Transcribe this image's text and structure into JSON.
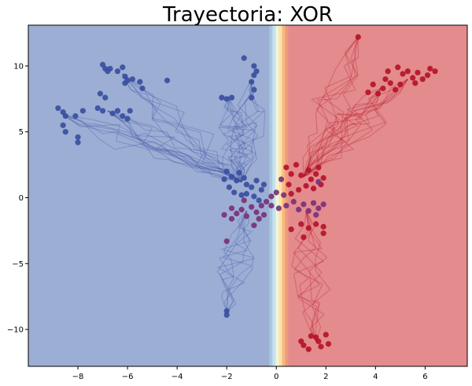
{
  "chart_data": {
    "type": "scatter",
    "title": "Trayectoria: XOR",
    "xlabel": "",
    "ylabel": "",
    "xlim": [
      -10,
      7.7
    ],
    "ylim": [
      -12.8,
      13.1
    ],
    "xticks": [
      -8,
      -6,
      -4,
      -2,
      0,
      2,
      4,
      6
    ],
    "yticks": [
      -10,
      -5,
      0,
      5,
      10
    ],
    "xtick_labels": [
      "−8",
      "−6",
      "−4",
      "−2",
      "0",
      "2",
      "4",
      "6"
    ],
    "ytick_labels": [
      "−10",
      "−5",
      "0",
      "5",
      "10"
    ],
    "grid": false,
    "legend": "none",
    "background": {
      "type": "decision-region",
      "boundary_x": 0.1,
      "left_color": "#9daed4",
      "right_color": "#e38b8d",
      "transition_colors": [
        "#9daed4",
        "#a9c9e1",
        "#c7e2ec",
        "#eef4d8",
        "#fbe3a8",
        "#f7b980",
        "#ee9a7e",
        "#e38b8d"
      ]
    },
    "colors": {
      "class_0": "#3a4fa0",
      "class_1": "#b5122b",
      "mid": "#7a3178"
    },
    "series": [
      {
        "class": 0,
        "color": "#3a4fa0",
        "points": [
          [
            -8.8,
            6.8
          ],
          [
            -8.6,
            6.5
          ],
          [
            -8.5,
            6.2
          ],
          [
            -8.6,
            5.5
          ],
          [
            -8.5,
            5.0
          ],
          [
            -8.1,
            6.2
          ],
          [
            -7.8,
            6.6
          ],
          [
            -8.0,
            4.6
          ],
          [
            -8.0,
            4.2
          ],
          [
            -7.2,
            6.8
          ],
          [
            -7.0,
            6.6
          ],
          [
            -6.9,
            7.6
          ],
          [
            -7.1,
            7.9
          ],
          [
            -6.6,
            6.4
          ],
          [
            -6.4,
            6.6
          ],
          [
            -6.2,
            6.2
          ],
          [
            -6.0,
            6.0
          ],
          [
            -5.9,
            6.6
          ],
          [
            -7.0,
            10.1
          ],
          [
            -6.9,
            9.8
          ],
          [
            -6.7,
            9.8
          ],
          [
            -6.4,
            9.6
          ],
          [
            -6.2,
            9.9
          ],
          [
            -6.1,
            9.2
          ],
          [
            -6.0,
            8.9
          ],
          [
            -5.8,
            9.0
          ],
          [
            -5.5,
            8.8
          ],
          [
            -5.4,
            8.3
          ],
          [
            -4.4,
            8.9
          ],
          [
            -6.8,
            9.6
          ],
          [
            -6.1,
            8.7
          ],
          [
            -2.2,
            7.6
          ],
          [
            -2.0,
            7.5
          ],
          [
            -1.8,
            7.6
          ],
          [
            -1.3,
            10.6
          ],
          [
            -0.9,
            10.0
          ],
          [
            -0.8,
            9.6
          ],
          [
            -0.9,
            9.3
          ],
          [
            -1.0,
            8.8
          ],
          [
            -0.9,
            8.2
          ],
          [
            -1.0,
            7.6
          ],
          [
            -2.0,
            2.0
          ],
          [
            -1.8,
            1.6
          ],
          [
            -1.6,
            1.3
          ],
          [
            -1.5,
            1.9
          ],
          [
            -1.3,
            1.5
          ],
          [
            -1.2,
            1.0
          ],
          [
            -1.0,
            0.8
          ],
          [
            -0.8,
            1.3
          ],
          [
            -0.6,
            0.6
          ],
          [
            -1.9,
            0.8
          ],
          [
            -1.7,
            0.4
          ],
          [
            -1.4,
            0.2
          ],
          [
            -1.2,
            0.3
          ],
          [
            -0.9,
            0.1
          ],
          [
            -0.7,
            -0.2
          ],
          [
            -2.1,
            1.4
          ],
          [
            -0.5,
            1.0
          ],
          [
            -2.0,
            -8.6
          ],
          [
            -2.0,
            -8.9
          ]
        ]
      },
      {
        "class": 1,
        "color": "#b5122b",
        "points": [
          [
            3.3,
            12.2
          ],
          [
            3.7,
            8.0
          ],
          [
            3.9,
            8.6
          ],
          [
            4.1,
            7.9
          ],
          [
            4.3,
            8.3
          ],
          [
            4.4,
            9.0
          ],
          [
            4.6,
            8.7
          ],
          [
            4.8,
            8.2
          ],
          [
            5.0,
            8.6
          ],
          [
            5.1,
            9.4
          ],
          [
            5.3,
            9.6
          ],
          [
            5.5,
            9.1
          ],
          [
            5.7,
            9.5
          ],
          [
            5.9,
            9.0
          ],
          [
            6.1,
            9.3
          ],
          [
            6.2,
            9.8
          ],
          [
            6.4,
            9.6
          ],
          [
            4.5,
            9.6
          ],
          [
            4.9,
            9.9
          ],
          [
            5.6,
            8.7
          ],
          [
            0.4,
            2.3
          ],
          [
            0.6,
            1.8
          ],
          [
            0.8,
            2.5
          ],
          [
            1.0,
            1.7
          ],
          [
            1.3,
            2.1
          ],
          [
            1.6,
            1.8
          ],
          [
            1.7,
            2.3
          ],
          [
            1.9,
            1.5
          ],
          [
            1.4,
            1.4
          ],
          [
            0.5,
            1.0
          ],
          [
            0.9,
            0.6
          ],
          [
            1.2,
            0.9
          ],
          [
            1.5,
            0.7
          ],
          [
            1.8,
            1.0
          ],
          [
            0.6,
            0.3
          ],
          [
            1.0,
            -2.0
          ],
          [
            1.3,
            -2.3
          ],
          [
            1.6,
            -2.0
          ],
          [
            1.9,
            -2.2
          ],
          [
            1.9,
            -2.7
          ],
          [
            1.1,
            -3.0
          ],
          [
            0.6,
            -2.4
          ],
          [
            1.0,
            -10.9
          ],
          [
            1.1,
            -11.2
          ],
          [
            1.4,
            -10.5
          ],
          [
            1.6,
            -10.6
          ],
          [
            1.7,
            -10.9
          ],
          [
            1.8,
            -11.3
          ],
          [
            2.0,
            -10.4
          ],
          [
            2.1,
            -11.1
          ],
          [
            1.3,
            -11.5
          ]
        ]
      },
      {
        "class": "mixed",
        "color": "#7a3178",
        "points": [
          [
            -1.8,
            -0.8
          ],
          [
            -1.6,
            -1.2
          ],
          [
            -1.4,
            -0.9
          ],
          [
            -1.2,
            -1.4
          ],
          [
            -1.8,
            -1.6
          ],
          [
            -1.0,
            -0.7
          ],
          [
            -0.8,
            -1.1
          ],
          [
            -0.7,
            -1.6
          ],
          [
            -0.9,
            -2.1
          ],
          [
            -0.6,
            -0.6
          ],
          [
            -0.4,
            -0.3
          ],
          [
            -0.2,
            -0.6
          ],
          [
            0.1,
            -0.8
          ],
          [
            0.4,
            -0.6
          ],
          [
            0.7,
            -0.3
          ],
          [
            0.9,
            -0.9
          ],
          [
            1.1,
            -0.5
          ],
          [
            1.3,
            -1.0
          ],
          [
            1.5,
            -0.4
          ],
          [
            1.7,
            -0.8
          ],
          [
            1.9,
            -0.5
          ],
          [
            0.3,
            0.2
          ],
          [
            0.0,
            0.4
          ],
          [
            -0.2,
            0.1
          ],
          [
            1.6,
            -1.3
          ],
          [
            -2.1,
            -1.3
          ],
          [
            -0.5,
            -1.3
          ],
          [
            1.7,
            1.2
          ],
          [
            0.2,
            1.4
          ],
          [
            -1.3,
            -0.2
          ],
          [
            -2.0,
            -3.3
          ]
        ]
      }
    ],
    "trajectory_groups": [
      {
        "color": "#3a4fa0",
        "from": [
          [
            -8.6,
            6.3
          ],
          [
            -6.8,
            6.6
          ],
          [
            -6.2,
            9.4
          ],
          [
            -1.0,
            9.0
          ],
          [
            -1.9,
            7.5
          ]
        ],
        "to": [
          -1.4,
          1.2
        ]
      },
      {
        "color": "#b5122b",
        "from": [
          [
            5.3,
            9.0
          ],
          [
            4.2,
            8.3
          ],
          [
            3.3,
            12.2
          ]
        ],
        "to": [
          1.1,
          1.6
        ]
      },
      {
        "color": "#b5122b",
        "from": [
          [
            1.6,
            -10.9
          ]
        ],
        "to": [
          1.2,
          -1.0
        ]
      },
      {
        "color": "#3a4fa0",
        "from": [
          [
            -2.0,
            -8.7
          ]
        ],
        "to": [
          -1.2,
          -1.0
        ]
      }
    ]
  }
}
